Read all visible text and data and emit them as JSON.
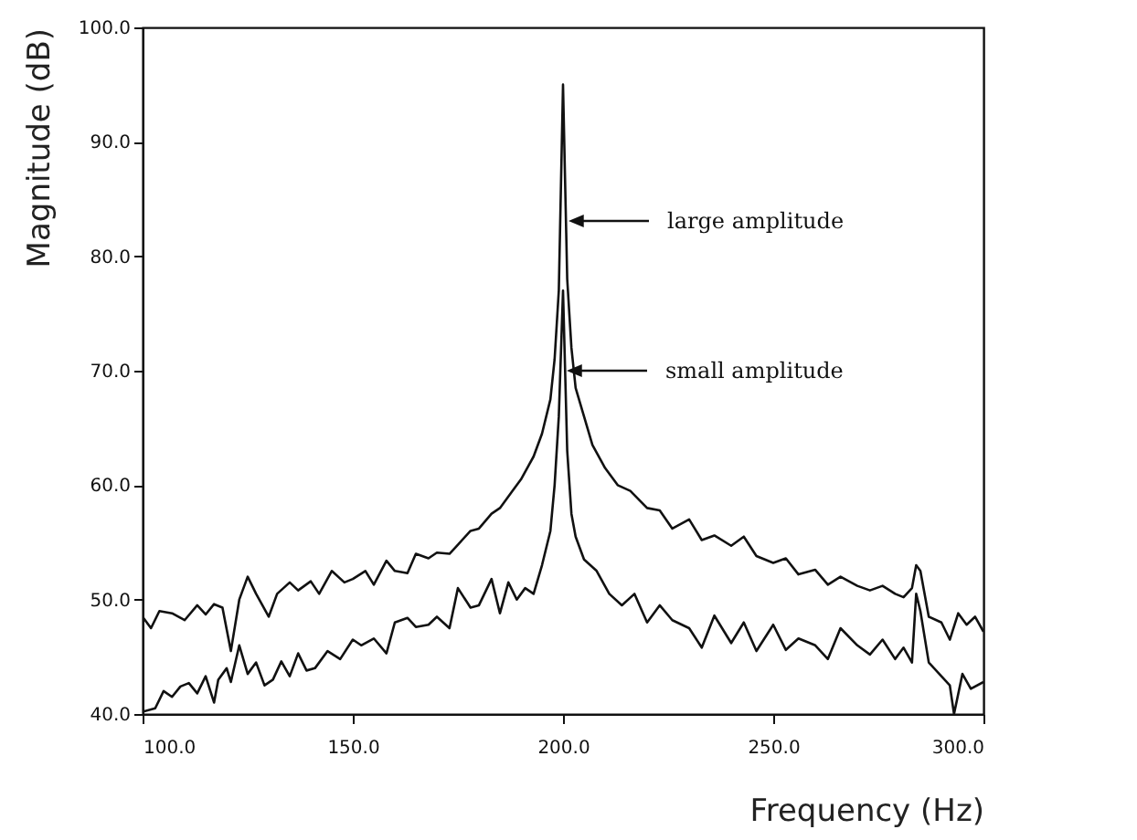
{
  "chart_data": {
    "type": "line",
    "xlabel": "Frequency (Hz)",
    "ylabel": "Magnitude (dB)",
    "xlim": [
      100,
      300
    ],
    "xticks": [
      {
        "value": 100,
        "label": "100.0"
      },
      {
        "value": 150,
        "label": "150.0"
      },
      {
        "value": 200,
        "label": "200.0"
      },
      {
        "value": 250,
        "label": "250.0"
      },
      {
        "value": 300,
        "label": "300.0"
      }
    ],
    "ylim": [
      40,
      100
    ],
    "yticks": [
      {
        "value": 40,
        "label": "40.0"
      },
      {
        "value": 50,
        "label": "50.0"
      },
      {
        "value": 60,
        "label": "60.0"
      },
      {
        "value": 70,
        "label": "70.0"
      },
      {
        "value": 80,
        "label": "80.0"
      },
      {
        "value": 90,
        "label": "90.0"
      },
      {
        "value": 100,
        "label": "100.0"
      }
    ],
    "annotations": [
      "large amplitude",
      "small amplitude"
    ],
    "series": [
      {
        "color": "#111111",
        "x": [
          100,
          102,
          104,
          107,
          110,
          113,
          115,
          117,
          119,
          121,
          123,
          125,
          127,
          130,
          132,
          135,
          137,
          140,
          142,
          145,
          148,
          150,
          153,
          155,
          158,
          160,
          163,
          165,
          168,
          170,
          173,
          175,
          178,
          180,
          183,
          185,
          188,
          190,
          193,
          195,
          197,
          198,
          199,
          200,
          201,
          202,
          203,
          205,
          207,
          210,
          213,
          216,
          220,
          223,
          226,
          230,
          233,
          236,
          240,
          243,
          246,
          250,
          253,
          256,
          260,
          263,
          266,
          270,
          273,
          276,
          279,
          281,
          283,
          284,
          285,
          287,
          290,
          292,
          294,
          296,
          298,
          300
        ],
        "values": [
          48.5,
          47.5,
          49,
          48.8,
          48.2,
          49.5,
          48.7,
          49.6,
          49.3,
          45.5,
          50,
          52,
          50.5,
          48.5,
          50.5,
          51.5,
          50.8,
          51.6,
          50.5,
          52.5,
          51.5,
          51.8,
          52.5,
          51.3,
          53.4,
          52.5,
          52.3,
          54,
          53.6,
          54.1,
          54,
          54.8,
          56,
          56.2,
          57.5,
          58,
          59.5,
          60.5,
          62.5,
          64.5,
          67.5,
          71,
          77,
          95,
          78,
          72,
          68.5,
          66,
          63.5,
          61.5,
          60,
          59.5,
          58,
          57.8,
          56.2,
          57,
          55.2,
          55.6,
          54.7,
          55.5,
          53.8,
          53.2,
          53.6,
          52.2,
          52.6,
          51.3,
          52,
          51.2,
          50.8,
          51.2,
          50.5,
          50.2,
          51,
          53,
          52.5,
          48.5,
          48,
          46.5,
          48.8,
          47.8,
          48.5,
          47.2
        ]
      },
      {
        "color": "#111111",
        "x": [
          100,
          103,
          105,
          107,
          109,
          111,
          113,
          115,
          117,
          118,
          120,
          121,
          123,
          125,
          127,
          129,
          131,
          133,
          135,
          137,
          139,
          141,
          144,
          147,
          150,
          152,
          155,
          158,
          160,
          163,
          165,
          168,
          170,
          173,
          175,
          178,
          180,
          183,
          185,
          187,
          189,
          191,
          193,
          195,
          197,
          198,
          199,
          200,
          201,
          202,
          203,
          205,
          208,
          211,
          214,
          217,
          220,
          223,
          226,
          230,
          233,
          236,
          240,
          243,
          246,
          250,
          253,
          256,
          260,
          263,
          266,
          270,
          273,
          276,
          279,
          281,
          283,
          284,
          285,
          287,
          290,
          292,
          293,
          295,
          297,
          300
        ],
        "values": [
          40.2,
          40.5,
          42,
          41.5,
          42.4,
          42.7,
          41.8,
          43.3,
          41,
          43,
          44,
          42.8,
          46,
          43.5,
          44.5,
          42.5,
          43,
          44.6,
          43.3,
          45.3,
          43.8,
          44,
          45.5,
          44.8,
          46.5,
          46,
          46.6,
          45.3,
          48,
          48.4,
          47.6,
          47.8,
          48.5,
          47.5,
          51,
          49.3,
          49.5,
          51.8,
          48.8,
          51.5,
          50,
          51,
          50.5,
          53,
          56,
          60,
          66,
          77,
          63,
          57.5,
          55.5,
          53.5,
          52.5,
          50.5,
          49.5,
          50.5,
          48,
          49.5,
          48.2,
          47.5,
          45.8,
          48.6,
          46.2,
          48,
          45.5,
          47.8,
          45.6,
          46.6,
          46,
          44.8,
          47.5,
          46,
          45.2,
          46.5,
          44.8,
          45.8,
          44.5,
          50.5,
          49,
          44.5,
          43.3,
          42.5,
          40,
          43.5,
          42.2,
          42.8
        ]
      }
    ]
  }
}
